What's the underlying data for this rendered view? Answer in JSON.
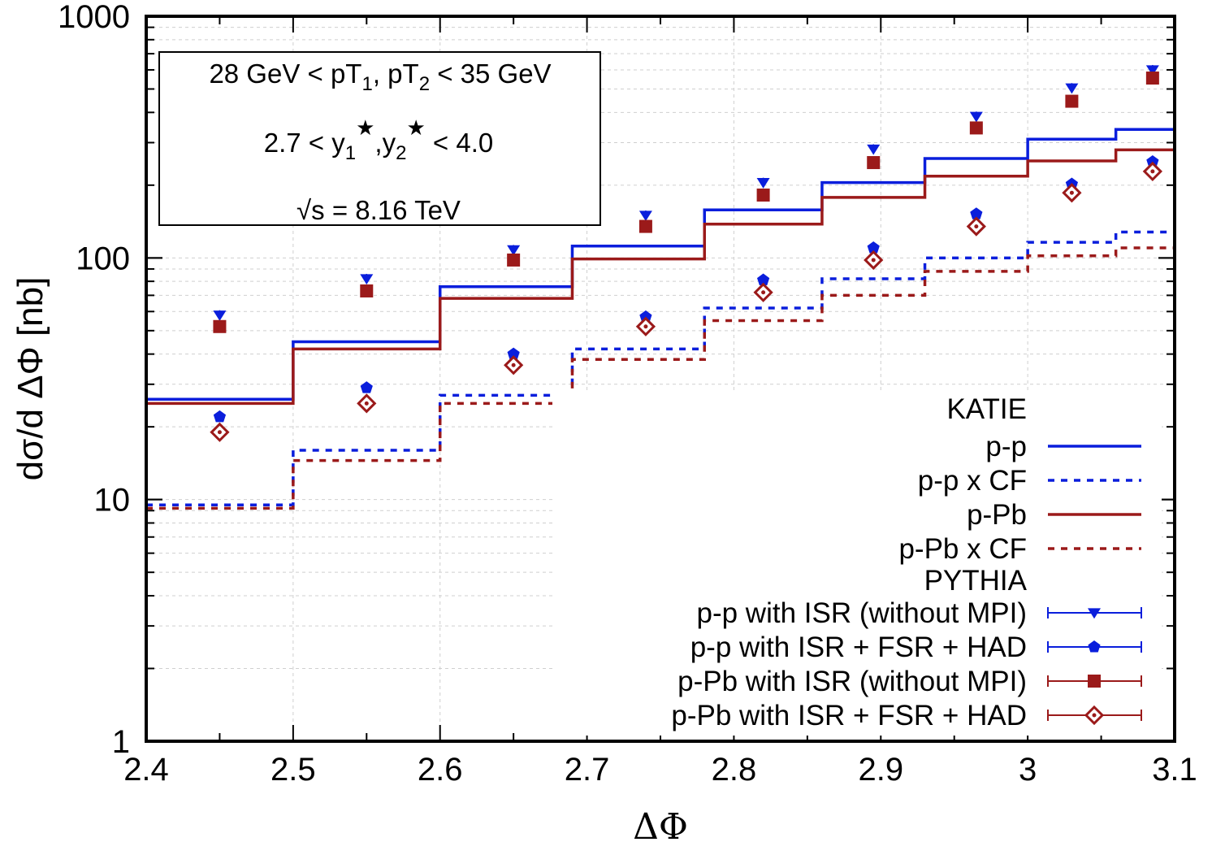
{
  "chart_data": {
    "type": "line",
    "title": "",
    "xlabel": "ΔΦ",
    "ylabel": "dσ/d ΔΦ [nb]",
    "xlim": [
      2.4,
      3.1
    ],
    "ylim": [
      1,
      1000
    ],
    "yscale": "log",
    "x_ticks": [
      "2.4",
      "2.5",
      "2.6",
      "2.7",
      "2.8",
      "2.9",
      "3",
      "3.1"
    ],
    "y_ticks": [
      "1",
      "10",
      "100",
      "1000"
    ],
    "grid": true,
    "legend_position": "bottom-right",
    "legend_groups": [
      "KATIE",
      "PYTHIA"
    ],
    "info_box": {
      "line1_main": "28 GeV < pT",
      "line1_sub1": "1",
      "line1_mid": ", pT",
      "line1_sub2": "2",
      "line1_end": " < 35 GeV",
      "line2_start": "2.7 < y",
      "line2_sub1": "1",
      "line2_mid": ",y",
      "line2_sub2": "2",
      "line2_end": " < 4.0",
      "star": "★",
      "line3_root": "√s",
      "line3_rest": " = 8.16 TeV"
    },
    "bin_edges": [
      2.4,
      2.5,
      2.6,
      2.69,
      2.78,
      2.86,
      2.93,
      3.0,
      3.06,
      3.1
    ],
    "histograms": [
      {
        "name": "p-p",
        "color": "#0a1edc",
        "dashed": false,
        "values": [
          26,
          45,
          76,
          112,
          158,
          205,
          258,
          310,
          340
        ]
      },
      {
        "name": "p-p x CF",
        "color": "#0a1edc",
        "dashed": true,
        "values": [
          9.5,
          16,
          27,
          42,
          62,
          82,
          100,
          116,
          128
        ]
      },
      {
        "name": "p-Pb",
        "color": "#9b1a1a",
        "dashed": false,
        "values": [
          25,
          42,
          68,
          99,
          138,
          178,
          218,
          252,
          280
        ]
      },
      {
        "name": "p-Pb x CF",
        "color": "#9b1a1a",
        "dashed": true,
        "values": [
          9.2,
          14.5,
          25,
          38,
          55,
          70,
          88,
          102,
          110
        ]
      }
    ],
    "points_x": [
      2.45,
      2.55,
      2.65,
      2.74,
      2.82,
      2.895,
      2.965,
      3.03,
      3.085
    ],
    "point_series": [
      {
        "name": "p-p with ISR (without MPI)",
        "color": "#0a1edc",
        "marker": "triangle-down",
        "values": [
          58,
          82,
          108,
          150,
          205,
          282,
          385,
          505,
          600
        ]
      },
      {
        "name": "p-p with ISR + FSR + HAD",
        "color": "#0a1edc",
        "marker": "pentagon",
        "values": [
          22,
          29,
          40,
          57,
          81,
          110,
          152,
          202,
          250
        ]
      },
      {
        "name": "p-Pb with ISR (without MPI)",
        "color": "#9b1a1a",
        "marker": "square",
        "values": [
          52,
          73,
          98,
          135,
          182,
          248,
          345,
          445,
          555
        ]
      },
      {
        "name": "p-Pb with ISR + FSR + HAD",
        "color": "#9b1a1a",
        "marker": "diamond",
        "values": [
          19,
          25,
          36,
          52,
          72,
          98,
          135,
          186,
          228
        ]
      }
    ]
  }
}
